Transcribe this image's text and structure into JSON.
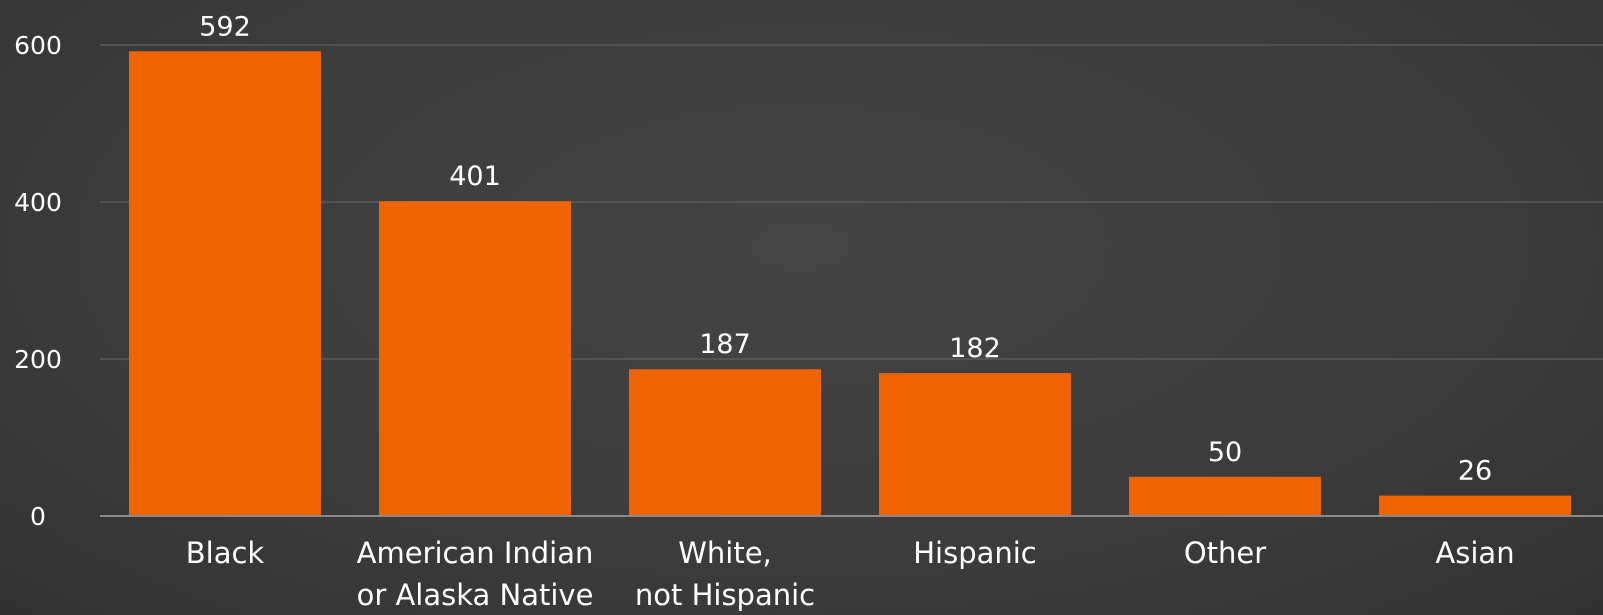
{
  "chart_data": {
    "type": "bar",
    "categories": [
      [
        "Black"
      ],
      [
        "American Indian",
        "or Alaska Native"
      ],
      [
        "White,",
        "not Hispanic"
      ],
      [
        "Hispanic"
      ],
      [
        "Other"
      ],
      [
        "Asian"
      ]
    ],
    "values": [
      592,
      401,
      187,
      182,
      50,
      26
    ],
    "data_labels": [
      "592",
      "401",
      "187",
      "182",
      "50",
      "26"
    ],
    "yticks": [
      0,
      200,
      400,
      600
    ],
    "ylim": [
      0,
      600
    ],
    "grid": true,
    "legend": "none",
    "colors": {
      "bar": "#f06400",
      "background": "#3c3c3c",
      "text": "#ffffff",
      "grid": "#5a5a5a"
    }
  }
}
